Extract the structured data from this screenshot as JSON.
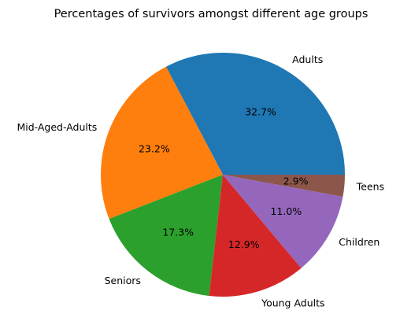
{
  "chart_data": {
    "type": "pie",
    "title": "Percentages of survivors amongst different age groups",
    "start_angle_deg": 0,
    "direction": "counterclockwise",
    "slices": [
      {
        "label": "Adults",
        "value": 32.7,
        "pct_label": "32.7%",
        "color": "#1f77b4"
      },
      {
        "label": "Mid-Aged-Adults",
        "value": 23.2,
        "pct_label": "23.2%",
        "color": "#ff7f0e"
      },
      {
        "label": "Seniors",
        "value": 17.3,
        "pct_label": "17.3%",
        "color": "#2ca02c"
      },
      {
        "label": "Young Adults",
        "value": 12.9,
        "pct_label": "12.9%",
        "color": "#d62728"
      },
      {
        "label": "Children",
        "value": 11.0,
        "pct_label": "11.0%",
        "color": "#9467bd"
      },
      {
        "label": "Teens",
        "value": 2.9,
        "pct_label": "2.9%",
        "color": "#8c564b"
      }
    ]
  }
}
